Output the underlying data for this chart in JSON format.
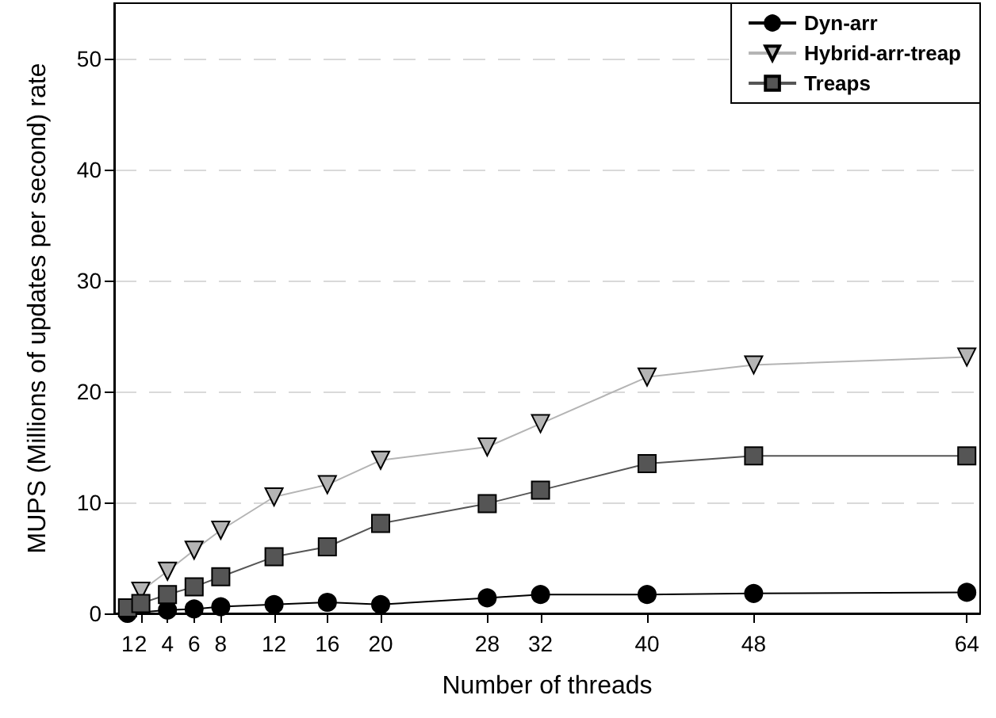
{
  "chart_data": {
    "type": "line",
    "xlabel": "Number of threads",
    "ylabel": "MUPS (Millions of updates per second) rate",
    "x": [
      1,
      2,
      4,
      6,
      8,
      12,
      16,
      20,
      28,
      32,
      40,
      48,
      64
    ],
    "series": [
      {
        "name": "Dyn-arr",
        "color": "#000000",
        "marker": "circle",
        "values": [
          0.0,
          null,
          0.3,
          0.4,
          0.6,
          0.8,
          1.0,
          0.8,
          1.4,
          1.7,
          1.7,
          1.8,
          1.9
        ]
      },
      {
        "name": "Hybrid-arr-treap",
        "color": "#b4b4b4",
        "marker": "triangle",
        "values": [
          null,
          2.0,
          3.8,
          5.7,
          7.5,
          10.5,
          11.6,
          13.8,
          15.0,
          17.1,
          21.3,
          22.4,
          23.1
        ]
      },
      {
        "name": "Treaps",
        "color": "#555555",
        "marker": "square",
        "values": [
          0.5,
          0.9,
          1.7,
          2.4,
          3.3,
          5.1,
          6.0,
          8.1,
          9.9,
          11.1,
          13.5,
          14.2,
          14.2
        ]
      }
    ],
    "xlim": [
      0,
      65
    ],
    "xticks": [
      1,
      2,
      4,
      6,
      8,
      12,
      16,
      20,
      28,
      32,
      40,
      48,
      64
    ],
    "ylim": [
      0,
      55
    ],
    "yticks": [
      0,
      10,
      20,
      30,
      40,
      50
    ],
    "grid": "y",
    "legend": "top right",
    "line_style": "solid"
  }
}
